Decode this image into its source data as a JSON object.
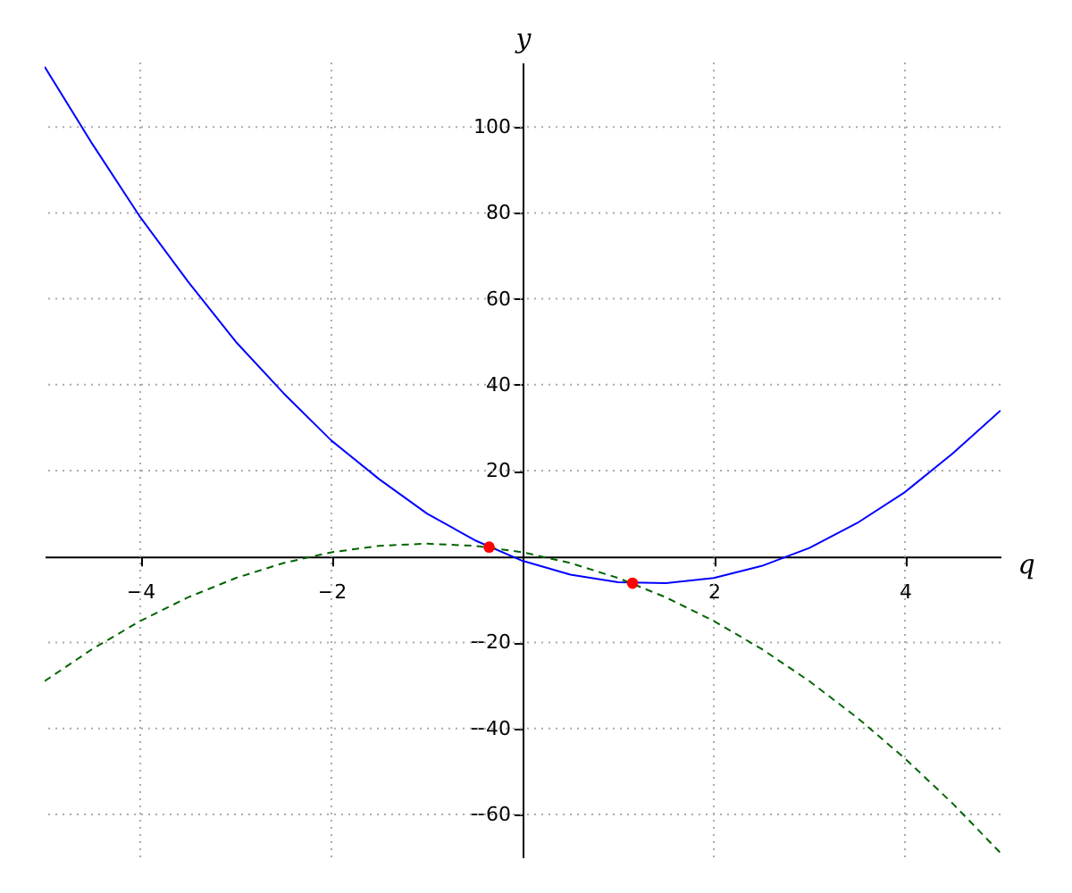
{
  "chart_data": {
    "type": "line",
    "xlabel": "q",
    "ylabel": "y",
    "xlim": [
      -5,
      5
    ],
    "ylim": [
      -70,
      115
    ],
    "xticks": [
      -4,
      -2,
      2,
      4
    ],
    "yticks": [
      -60,
      -40,
      -20,
      20,
      40,
      60,
      80,
      100
    ],
    "grid": true,
    "marker": "none",
    "series": [
      {
        "color": "#0000ff",
        "line_style": "solid",
        "x": [
          -5,
          -4.5,
          -4,
          -3.5,
          -3,
          -2.5,
          -2,
          -1.5,
          -1,
          -0.5,
          0,
          0.5,
          1,
          1.5,
          2,
          2.5,
          3,
          3.5,
          4,
          4.5,
          5
        ],
        "values": [
          114,
          96,
          79,
          64,
          50,
          38,
          27,
          18,
          10,
          3.8,
          -1,
          -4.2,
          -6,
          -6.2,
          -5,
          -2.2,
          2,
          7.8,
          15,
          24,
          34
        ]
      },
      {
        "color": "#006400",
        "line_style": "dashed",
        "x": [
          -5,
          -4.5,
          -4,
          -3.5,
          -3,
          -2.5,
          -2,
          -1.5,
          -1,
          -0.5,
          0,
          0.5,
          1,
          1.5,
          2,
          2.5,
          3,
          3.5,
          4,
          4.5,
          5
        ],
        "values": [
          -29,
          -21.5,
          -15,
          -9.5,
          -5,
          -1.5,
          1,
          2.5,
          3,
          2.5,
          1,
          -1.5,
          -5,
          -9.5,
          -15,
          -21.5,
          -29,
          -37.5,
          -47,
          -57.5,
          -69
        ]
      },
      {
        "type": "scatter",
        "color": "#ff0000",
        "marker": "circle",
        "x": [
          -0.35,
          1.15
        ],
        "values": [
          2.2,
          -6.2
        ]
      }
    ]
  }
}
